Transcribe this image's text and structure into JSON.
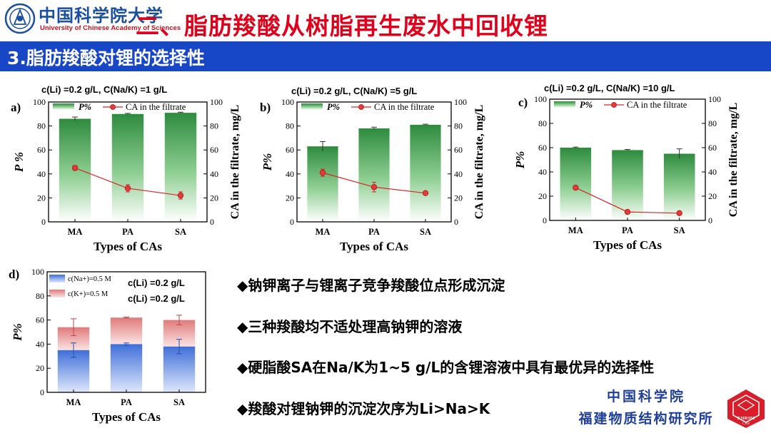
{
  "header": {
    "logo_cn": "中国科学院大学",
    "logo_en": "University of Chinese Academy of Sciences",
    "title": "二、脂肪羧酸从树脂再生废水中回收锂"
  },
  "section": {
    "title": "3.脂肪羧酸对锂的选择性"
  },
  "colors": {
    "band": "#1747c7",
    "title_red": "#e0001b",
    "bar_green": "#2e8b3e",
    "line_red": "#d62728",
    "na_blue": "#3f6fd8",
    "k_red": "#e07a7a"
  },
  "chart_data": [
    {
      "panel": "a)",
      "type": "bar+line",
      "condition": "c(Li) =0.2 g/L, C(Na/K) =1 g/L",
      "categories": [
        "MA",
        "PA",
        "SA"
      ],
      "xlabel": "Types of CAs",
      "ylabel": "P %",
      "ylabel_right": "CA in the filtrate, mg/L",
      "ylim": [
        0,
        100
      ],
      "ylim_right": [
        0,
        100
      ],
      "yticks": [
        "0",
        "20",
        "40",
        "60",
        "80",
        "100"
      ],
      "series": [
        {
          "name": "P%",
          "type": "bar",
          "values": [
            86,
            90,
            91
          ],
          "errors": [
            1.5,
            0.5,
            0.5
          ]
        },
        {
          "name": "CA in the filtrate",
          "type": "line",
          "values": [
            45,
            28,
            22
          ],
          "errors": [
            2,
            3,
            3
          ]
        }
      ]
    },
    {
      "panel": "b)",
      "type": "bar+line",
      "condition": "c(Li) =0.2 g/L, C(Na/K) =5 g/L",
      "categories": [
        "MA",
        "PA",
        "SA"
      ],
      "xlabel": "Types of CAs",
      "ylabel": "P%",
      "ylabel_right": "CA in the filtrate, mg/L",
      "ylim": [
        0,
        100
      ],
      "ylim_right": [
        0,
        100
      ],
      "yticks": [
        "0",
        "20",
        "40",
        "60",
        "80",
        "100"
      ],
      "series": [
        {
          "name": "P%",
          "type": "bar",
          "values": [
            63,
            78,
            81
          ],
          "errors": [
            4,
            1,
            0.5
          ]
        },
        {
          "name": "CA in the filtrate",
          "type": "line",
          "values": [
            41,
            29,
            24
          ],
          "errors": [
            3,
            4,
            1
          ]
        }
      ]
    },
    {
      "panel": "c)",
      "type": "bar+line",
      "condition": "c(Li) =0.2 g/L, C(Na/K) =10 g/L",
      "categories": [
        "MA",
        "PA",
        "SA"
      ],
      "xlabel": "Types of CAs",
      "ylabel": "P%",
      "ylabel_right": "CA in the filtrate, mg/L",
      "ylim": [
        0,
        100
      ],
      "ylim_right": [
        0,
        100
      ],
      "yticks": [
        "0",
        "20",
        "40",
        "60",
        "80",
        "100"
      ],
      "series": [
        {
          "name": "P%",
          "type": "bar",
          "values": [
            60,
            58,
            55
          ],
          "errors": [
            0.5,
            0.5,
            4
          ]
        },
        {
          "name": "CA in the filtrate",
          "type": "line",
          "values": [
            27,
            7,
            6
          ],
          "errors": [
            0,
            0,
            0
          ]
        }
      ]
    },
    {
      "panel": "d)",
      "type": "stacked-bar",
      "conditions": [
        "c(Li) =0.2 g/L",
        "c(Li) =0.2 g/L"
      ],
      "categories": [
        "MA",
        "PA",
        "SA"
      ],
      "xlabel": "Types of CAs",
      "ylabel": "P%",
      "ylim": [
        0,
        100
      ],
      "yticks": [
        "0",
        "20",
        "40",
        "60",
        "80",
        "100"
      ],
      "series": [
        {
          "name": "c(Na+)=0.5 M",
          "values": [
            35,
            40,
            38
          ],
          "errors": [
            6,
            1,
            6
          ]
        },
        {
          "name": "c(K+)=0.5 M",
          "values": [
            54,
            62,
            60
          ],
          "errors": [
            7,
            0.5,
            4
          ]
        }
      ]
    }
  ],
  "bullets": [
    "◆钠钾离子与锂离子竞争羧酸位点形成沉淀",
    "◆三种羧酸均不适处理高钠钾的溶液",
    "◆硬脂酸SA在Na/K为1~5 g/L的含锂溶液中具有最优异的选择性",
    "◆羧酸对锂钠钾的沉淀次序为Li>Na>K"
  ],
  "footer": {
    "org_line1": "中国科学院",
    "org_line2": "福建物质结构研究所",
    "logo_text": "FJIRSM",
    "logo_sub": "CAS"
  }
}
